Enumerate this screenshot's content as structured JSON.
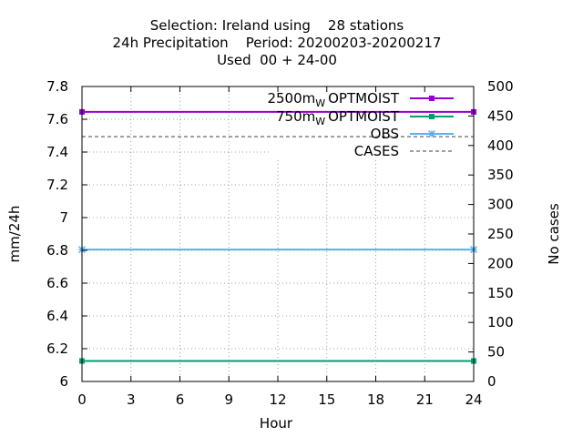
{
  "chart_data": {
    "type": "line",
    "title_lines": [
      "Selection: Ireland using    28 stations",
      "24h Precipitation    Period: 20200203-20200217",
      "Used  00 + 24-00"
    ],
    "xlabel": "Hour",
    "ylabel": "mm/24h",
    "y2label": "No cases",
    "xlim": [
      0,
      24
    ],
    "ylim": [
      6,
      7.8
    ],
    "y2lim": [
      0,
      500
    ],
    "x_ticks": [
      "0",
      "3",
      "6",
      "9",
      "12",
      "15",
      "18",
      "21",
      "24"
    ],
    "y_ticks": [
      "6",
      "6.2",
      "6.4",
      "6.6",
      "6.8",
      "7",
      "7.2",
      "7.4",
      "7.6",
      "7.8"
    ],
    "y2_ticks": [
      "0",
      "50",
      "100",
      "150",
      "200",
      "250",
      "300",
      "350",
      "400",
      "450",
      "500"
    ],
    "grid": true,
    "legend_position": "top-right",
    "x": [
      0,
      24
    ],
    "series": [
      {
        "name_main": "2500m",
        "name_sub": "W",
        "name_tail": " OPTMOIST",
        "axis": "y",
        "values": [
          7.645,
          7.645
        ],
        "color": "#9400d3",
        "style": "solid",
        "marker": "square"
      },
      {
        "name_main": "750m",
        "name_sub": "W",
        "name_tail": " OPTMOIST",
        "axis": "y",
        "values": [
          6.125,
          6.125
        ],
        "color": "#009e73",
        "style": "solid",
        "marker": "square"
      },
      {
        "name_main": "OBS",
        "name_sub": "",
        "name_tail": "",
        "axis": "y",
        "values": [
          6.805,
          6.805
        ],
        "color": "#56b4e9",
        "style": "solid",
        "marker": "star"
      },
      {
        "name_main": "CASES",
        "name_sub": "",
        "name_tail": "",
        "axis": "y2",
        "values": [
          415,
          415
        ],
        "color": "#808080",
        "style": "dashed",
        "marker": "none"
      }
    ]
  }
}
